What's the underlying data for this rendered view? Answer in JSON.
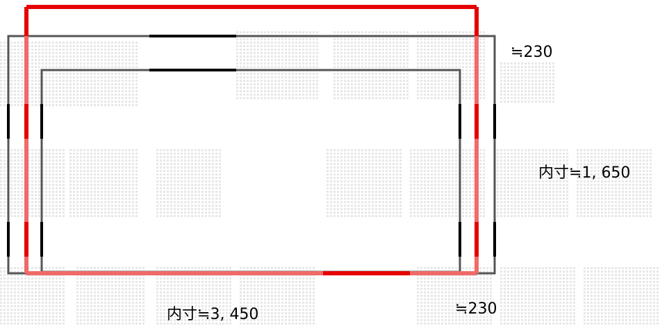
{
  "watermark": {
    "text": "無断転載禁止",
    "color": "#e6e6e6"
  },
  "colors": {
    "outer_frame": "#e60000",
    "wall_outline": "#555555",
    "inner_outline": "#555555",
    "dash": "#000000",
    "background": "#ffffff"
  },
  "labels": {
    "top_thickness": "≒230",
    "inner_height": "内寸≒1, 650",
    "inner_width": "内寸≒3, 450",
    "bottom_thickness": "≒230"
  }
}
